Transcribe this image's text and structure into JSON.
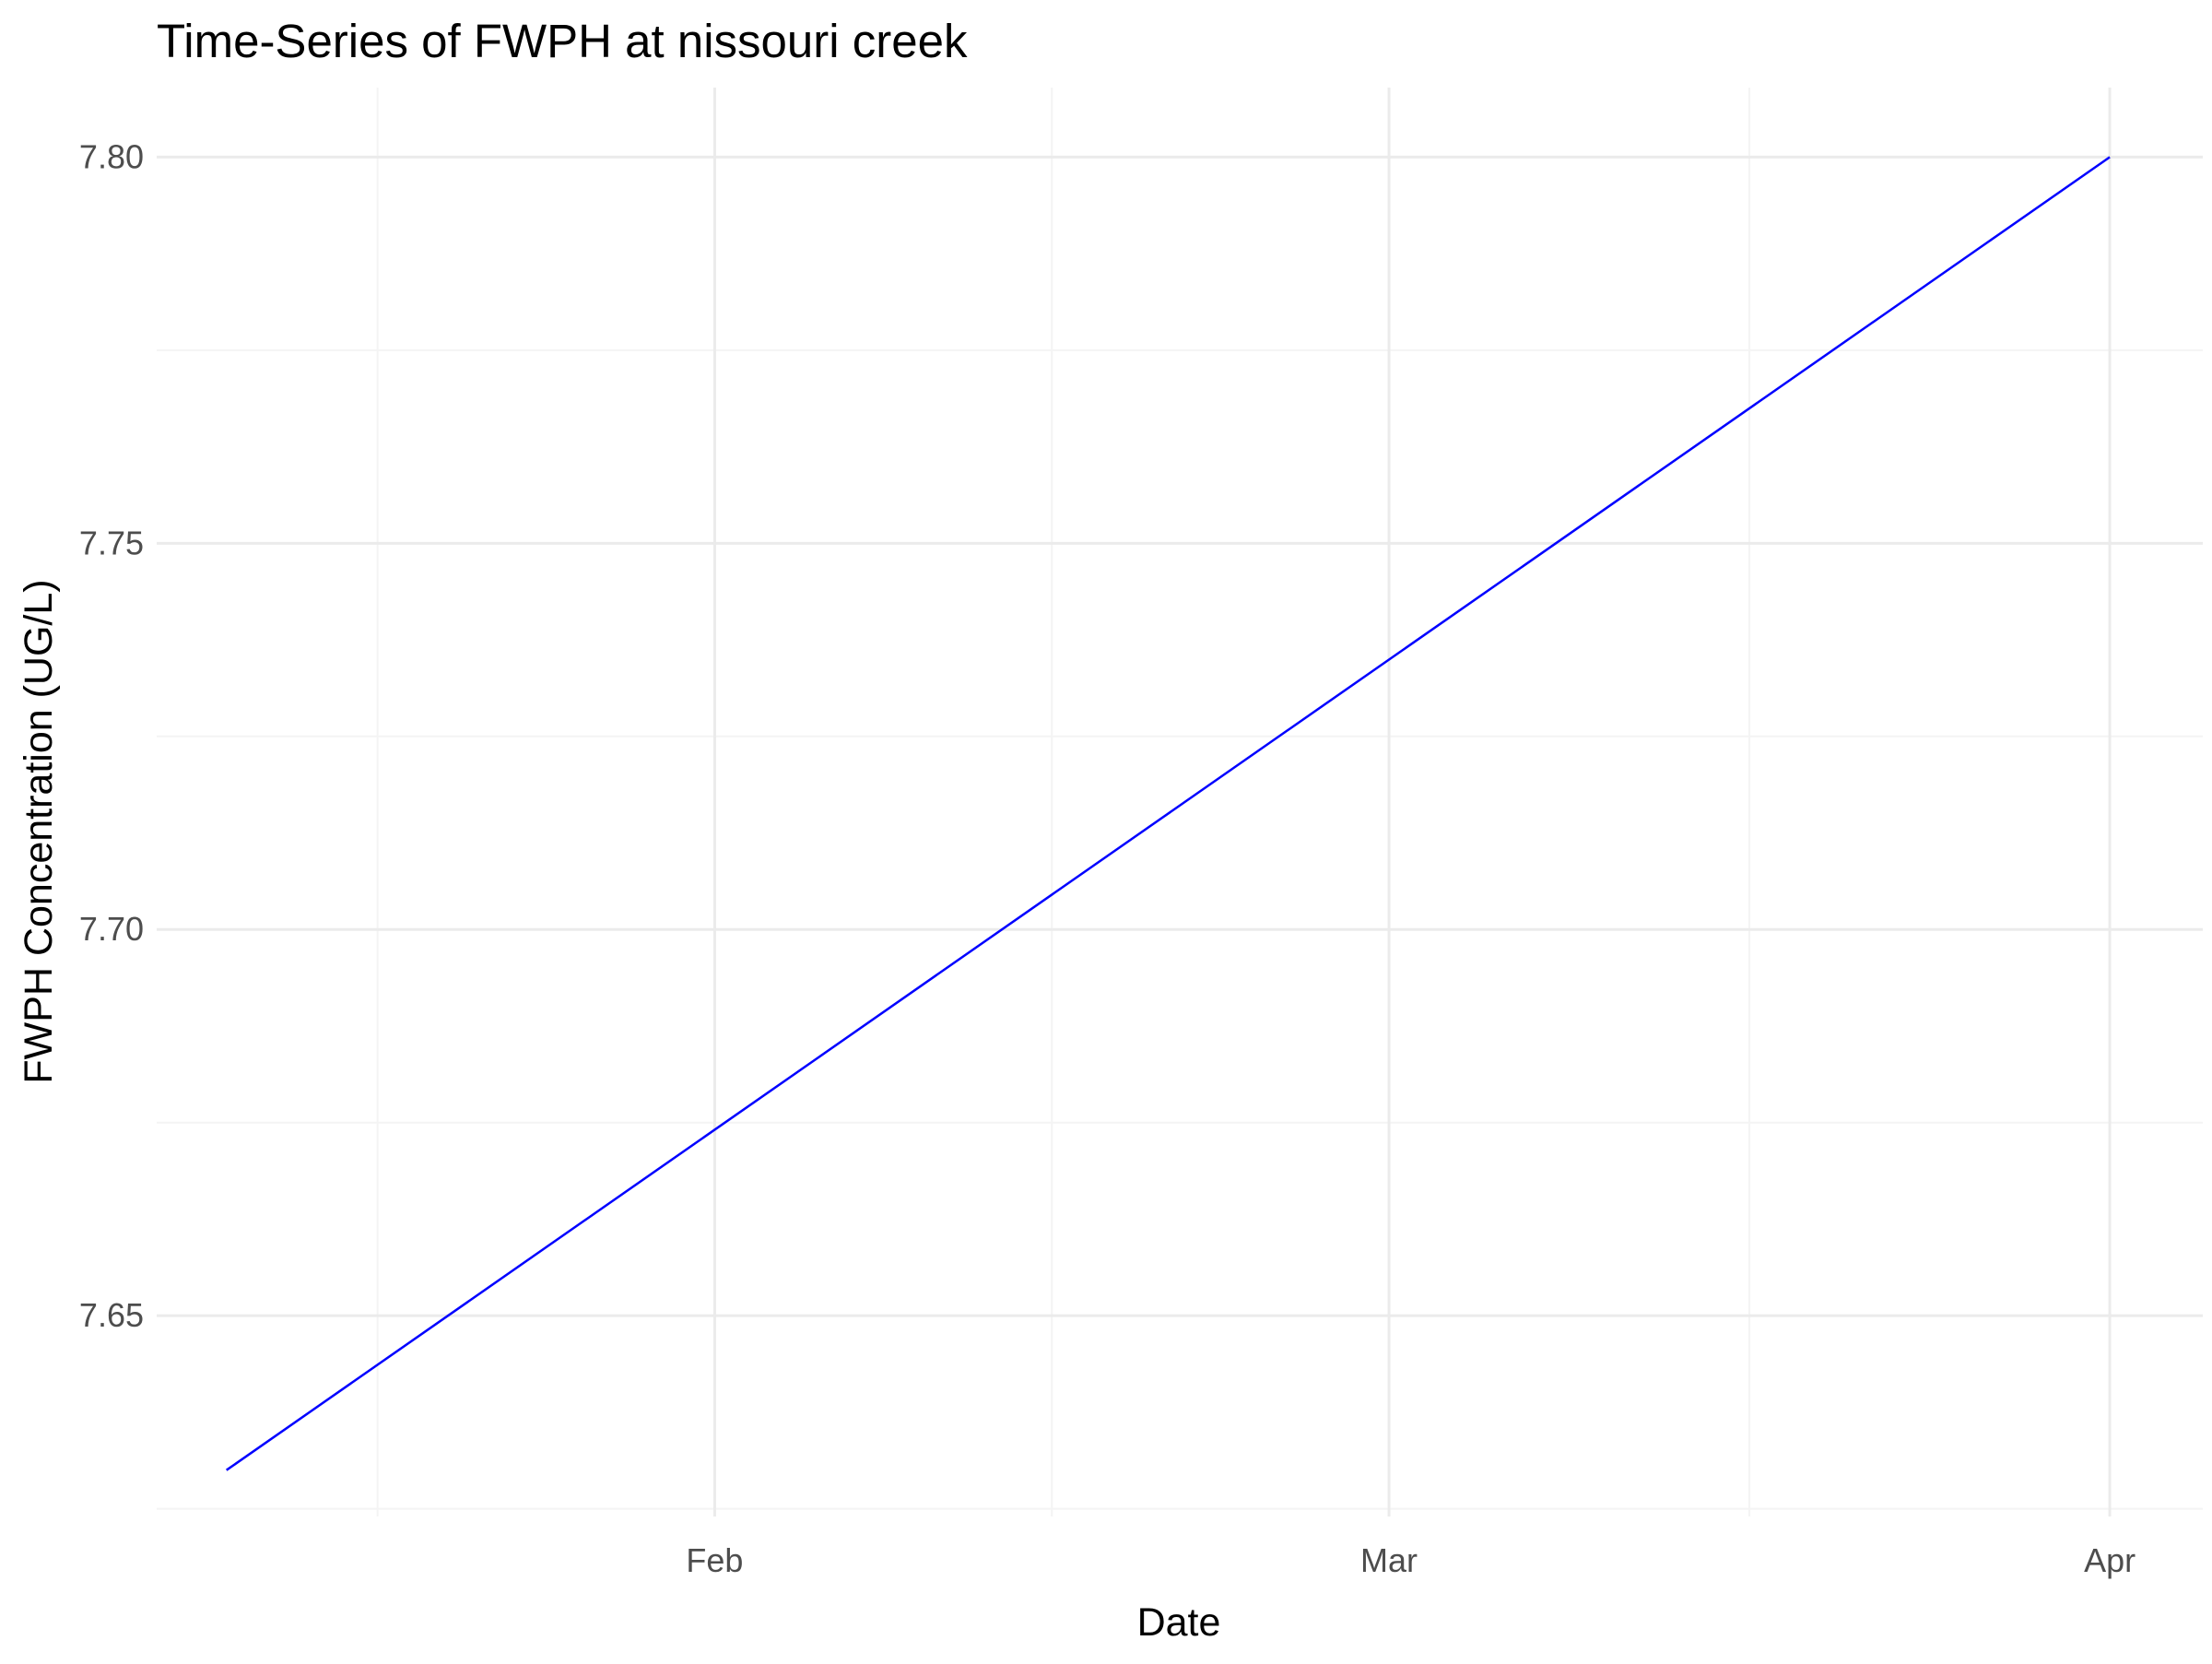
{
  "chart_data": {
    "type": "line",
    "title": "Time-Series of FWPH at nissouri creek",
    "xlabel": "Date",
    "ylabel": "FWPH Concentration (UG/L)",
    "x_ticks": [
      "Feb",
      "Mar",
      "Apr"
    ],
    "y_ticks": [
      "7.65",
      "7.70",
      "7.75",
      "7.80"
    ],
    "xlim": [
      "2024-01-08",
      "2024-04-05"
    ],
    "ylim": [
      7.624,
      7.809
    ],
    "grid": true,
    "legend": "none",
    "series": [
      {
        "color": "#0000ff",
        "points": [
          {
            "x": "2024-01-11",
            "y": 7.63
          },
          {
            "x": "2024-04-01",
            "y": 7.8
          }
        ]
      }
    ]
  },
  "colors": {
    "background": "#ffffff",
    "grid_major": "#ebebeb",
    "grid_minor": "#f4f4f4",
    "line": "#0000ff"
  }
}
